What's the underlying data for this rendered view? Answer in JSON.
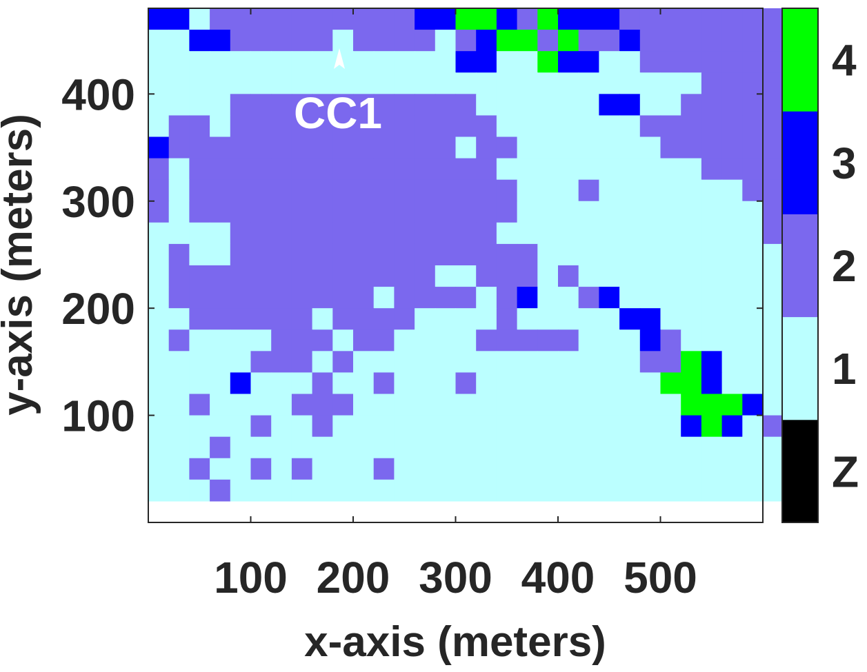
{
  "chart_data": {
    "type": "heatmap",
    "title": "",
    "xlabel": "x-axis (meters)",
    "ylabel": "y-axis (meters)",
    "x_ticks": [
      100,
      200,
      300,
      400,
      500
    ],
    "x_tick_labels": [
      "100",
      "200",
      "300",
      "400",
      "500"
    ],
    "y_ticks": [
      100,
      200,
      300,
      400
    ],
    "y_tick_labels": [
      "100",
      "200",
      "300",
      "400"
    ],
    "xlim": [
      10,
      590
    ],
    "ylim": [
      10,
      470
    ],
    "cell_size": 20,
    "grid": false,
    "colorbar": {
      "position": "right",
      "levels": [
        {
          "label": "Z",
          "color": "#000000"
        },
        {
          "label": "1",
          "color": "#BBFFFF"
        },
        {
          "label": "2",
          "color": "#7B68EE"
        },
        {
          "label": "3",
          "color": "#0000FF"
        },
        {
          "label": "4",
          "color": "#00FF00"
        }
      ]
    },
    "annotation": {
      "text": "CC1",
      "x": 190,
      "y": 430,
      "color": "#FFFFFF"
    },
    "rows_top_to_bottom": [
      "33122222222223344324333222222221",
      "11332222212222123442422322222222",
      "11111111111111133114331122222221",
      "11111111111111111111111111122222",
      "11112222222222221111113311222222",
      "12212222222222222111111122222222",
      "32222222222222212211111112222222",
      "21222222222222222111111111122222",
      "21222222222222222211121111111222",
      "21222222222222222211111111111122",
      "11112222222222222111111111111121",
      "12112222222222222221111111111112",
      "12222222222222112221211111111111",
      "12222222222122221231123111111111",
      "11222222122221111211111331111111",
      "12111122212211112222211132111111",
      "11111222121111111111111122431111",
      "11113111211211121111111114431111",
      "11211112221111111111111111444311",
      "11111211211111111111111111343121",
      "11121111111111111111111111111112",
      "11211212111211111111111111111113",
      "11121111111111111111111111111112"
    ]
  }
}
